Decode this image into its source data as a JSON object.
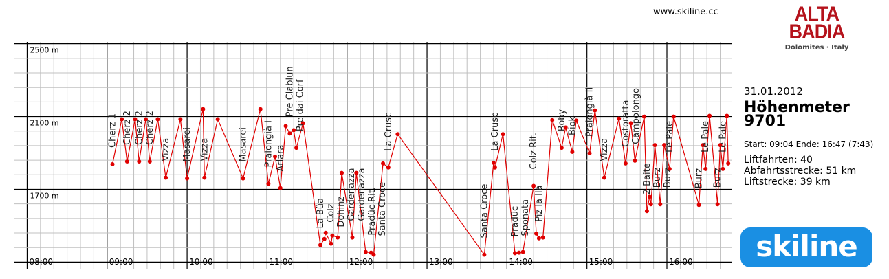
{
  "header": {
    "website": "www.skiline.cc"
  },
  "logo": {
    "brand_text": "ALTA BADIA",
    "tagline": "Dolomites · Italy",
    "skiline_text": "skiline"
  },
  "summary": {
    "date": "31.01.2012",
    "title": "Höhenmeter",
    "value": "9701",
    "times": "Start: 09:04 Ende: 16:47 (7:43)",
    "rides": "Liftfahrten: 40",
    "downhill": "Abfahrtsstrecke: 51 km",
    "lift_distance": "Liftstrecke: 39 km"
  },
  "colors": {
    "line": "#e00000",
    "grid": "#c0c0c0",
    "major": "#000000"
  },
  "chart_data": {
    "type": "line",
    "title": "",
    "xlabel": "",
    "ylabel": "",
    "xlim": [
      "07:51",
      "16:49"
    ],
    "ylim": [
      1260,
      2510
    ],
    "grid": true,
    "x_ticks": [
      "08:00",
      "09:00",
      "10:00",
      "11:00",
      "12:00",
      "13:00",
      "14:00",
      "15:00",
      "16:00"
    ],
    "y_ticks": [
      {
        "value": 2500,
        "label": "2500 m"
      },
      {
        "value": 2100,
        "label": "2100 m"
      },
      {
        "value": 1700,
        "label": "1700 m"
      }
    ],
    "points": [
      {
        "t": "09:04",
        "alt": 1838,
        "lift": "Cherz 1"
      },
      {
        "t": "09:11",
        "alt": 2085
      },
      {
        "t": "09:15",
        "alt": 1853,
        "lift": "Cherz 2"
      },
      {
        "t": "09:21",
        "alt": 2085
      },
      {
        "t": "09:24",
        "alt": 1853,
        "lift": "Cherz 2"
      },
      {
        "t": "09:29",
        "alt": 2085
      },
      {
        "t": "09:32",
        "alt": 1853,
        "lift": "Cherz 2"
      },
      {
        "t": "09:38",
        "alt": 2085
      },
      {
        "t": "09:44",
        "alt": 1764,
        "lift": "Vizza"
      },
      {
        "t": "09:55",
        "alt": 2085
      },
      {
        "t": "10:00",
        "alt": 1760,
        "lift": "Masarei"
      },
      {
        "t": "10:12",
        "alt": 2141
      },
      {
        "t": "10:13",
        "alt": 1764,
        "lift": "Vizza"
      },
      {
        "t": "10:23",
        "alt": 2085
      },
      {
        "t": "10:42",
        "alt": 1760,
        "lift": "Masarei"
      },
      {
        "t": "10:55",
        "alt": 2141
      },
      {
        "t": "11:01",
        "alt": 1730,
        "lift": "Pralongià I"
      },
      {
        "t": "11:06",
        "alt": 1880
      },
      {
        "t": "11:10",
        "alt": 1707,
        "lift": "Arlara"
      },
      {
        "t": "11:14",
        "alt": 2048
      },
      {
        "t": "11:17",
        "alt": 2007,
        "lift": "Pre Ciablun"
      },
      {
        "t": "11:20",
        "alt": 2025
      },
      {
        "t": "11:22",
        "alt": 1928,
        "lift": "Pre dai Corf"
      },
      {
        "t": "11:27",
        "alt": 2063
      },
      {
        "t": "11:40",
        "alt": 1394,
        "lift": "La Büa"
      },
      {
        "t": "11:43",
        "alt": 1427,
        "lift": "Colz"
      },
      {
        "t": "11:44",
        "alt": 1461
      },
      {
        "t": "11:48",
        "alt": 1401,
        "lift": "Dohinz"
      },
      {
        "t": "11:49",
        "alt": 1446
      },
      {
        "t": "11:53",
        "alt": 1435,
        "lift": "Gardenazza"
      },
      {
        "t": "11:56",
        "alt": 1790
      },
      {
        "t": "12:04",
        "alt": 1435,
        "lift": "Gardenazza"
      },
      {
        "t": "12:07",
        "alt": 1790
      },
      {
        "t": "12:14",
        "alt": 1356,
        "lift": "Pradüc Rit."
      },
      {
        "t": "12:18",
        "alt": 1352,
        "lift": "Santa Croce"
      },
      {
        "t": "12:20",
        "alt": 1341
      },
      {
        "t": "12:27",
        "alt": 1842
      },
      {
        "t": "12:31",
        "alt": 1820,
        "lift": "La Crusc"
      },
      {
        "t": "12:38",
        "alt": 2003
      },
      {
        "t": "13:43",
        "alt": 1341,
        "lift": "Santa Croce"
      },
      {
        "t": "13:50",
        "alt": 1846
      },
      {
        "t": "13:51",
        "alt": 1820,
        "lift": "La Crusc"
      },
      {
        "t": "13:57",
        "alt": 2003
      },
      {
        "t": "14:06",
        "alt": 1349,
        "lift": "Pradüc"
      },
      {
        "t": "14:09",
        "alt": 1352,
        "lift": "Sponata"
      },
      {
        "t": "14:12",
        "alt": 1356
      },
      {
        "t": "14:20",
        "alt": 1719,
        "lift": "Colz Rit."
      },
      {
        "t": "14:22",
        "alt": 1457
      },
      {
        "t": "14:24",
        "alt": 1431,
        "lift": "Piz la Ila"
      },
      {
        "t": "14:27",
        "alt": 1435
      },
      {
        "t": "14:34",
        "alt": 2081
      },
      {
        "t": "14:41",
        "alt": 1928,
        "lift": "Roby"
      },
      {
        "t": "14:44",
        "alt": 2040
      },
      {
        "t": "14:49",
        "alt": 1906,
        "lift": "Biok"
      },
      {
        "t": "14:52",
        "alt": 2078
      },
      {
        "t": "15:02",
        "alt": 1898,
        "lift": "Pralongià II"
      },
      {
        "t": "15:06",
        "alt": 2134
      },
      {
        "t": "15:13",
        "alt": 1764,
        "lift": "Vizza"
      },
      {
        "t": "15:24",
        "alt": 2089
      },
      {
        "t": "15:29",
        "alt": 1842,
        "lift": "Costoratta"
      },
      {
        "t": "15:33",
        "alt": 2063
      },
      {
        "t": "15:36",
        "alt": 1857,
        "lift": "Campolongo"
      },
      {
        "t": "15:43",
        "alt": 2100
      },
      {
        "t": "15:45",
        "alt": 1580,
        "lift": "2 Baite"
      },
      {
        "t": "15:47",
        "alt": 1659
      },
      {
        "t": "15:48",
        "alt": 1618,
        "lift": "Burz"
      },
      {
        "t": "15:51",
        "alt": 1943
      },
      {
        "t": "15:55",
        "alt": 1618,
        "lift": "Burz"
      },
      {
        "t": "15:58",
        "alt": 1943
      },
      {
        "t": "16:02",
        "alt": 1812,
        "lift": "Le Pale"
      },
      {
        "t": "16:05",
        "alt": 2100
      },
      {
        "t": "16:24",
        "alt": 1614,
        "lift": "Burz"
      },
      {
        "t": "16:27",
        "alt": 1943
      },
      {
        "t": "16:29",
        "alt": 1812,
        "lift": "Le Pale"
      },
      {
        "t": "16:32",
        "alt": 2104
      },
      {
        "t": "16:38",
        "alt": 1618,
        "lift": "Burz"
      },
      {
        "t": "16:40",
        "alt": 1943
      },
      {
        "t": "16:42",
        "alt": 1812,
        "lift": "Le Pale"
      },
      {
        "t": "16:45",
        "alt": 2104
      },
      {
        "t": "16:46",
        "alt": 1842
      }
    ]
  }
}
